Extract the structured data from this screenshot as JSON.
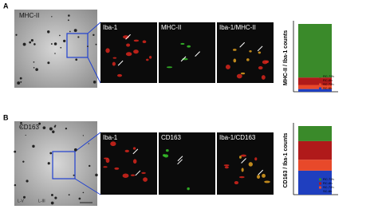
{
  "figure": {
    "panel_a": {
      "letter": "A",
      "overview_label": "MHC-II",
      "panels": [
        "Iba-1",
        "MHC-II",
        "Iba-1/MHC-II"
      ]
    },
    "panel_b": {
      "letter": "B",
      "overview_label": "CD163",
      "layers": [
        "L-V",
        "L-III"
      ],
      "panels": [
        "Iba-1",
        "CD163",
        "Iba-1/CD163"
      ]
    }
  },
  "chart_data": [
    {
      "type": "stacked-bar",
      "ylabel": "MHC-II / Iba-1 counts",
      "categories": [
        null
      ],
      "ylim": [
        0,
        100
      ],
      "series": [
        {
          "name": "SC-6h",
          "color": "#1f3fbf",
          "values": [
            4
          ]
        },
        {
          "name": "SC-72h",
          "color": "#e8492a",
          "values": [
            6
          ]
        },
        {
          "name": "RC-6h",
          "color": "#b01a1a",
          "values": [
            11
          ]
        },
        {
          "name": "RC-72h",
          "color": "#3a8a2a",
          "values": [
            79
          ]
        }
      ]
    },
    {
      "type": "stacked-bar",
      "ylabel": "CD163 / Iba-1 counts",
      "categories": [
        null
      ],
      "ylim": [
        0,
        100
      ],
      "series": [
        {
          "name": "SC-6h",
          "color": "#1f3fbf",
          "values": [
            35
          ]
        },
        {
          "name": "SC-72h",
          "color": "#e8492a",
          "values": [
            16
          ]
        },
        {
          "name": "RC-6h",
          "color": "#b01a1a",
          "values": [
            27
          ]
        },
        {
          "name": "RC-72h",
          "color": "#3a8a2a",
          "values": [
            22
          ]
        }
      ]
    }
  ]
}
